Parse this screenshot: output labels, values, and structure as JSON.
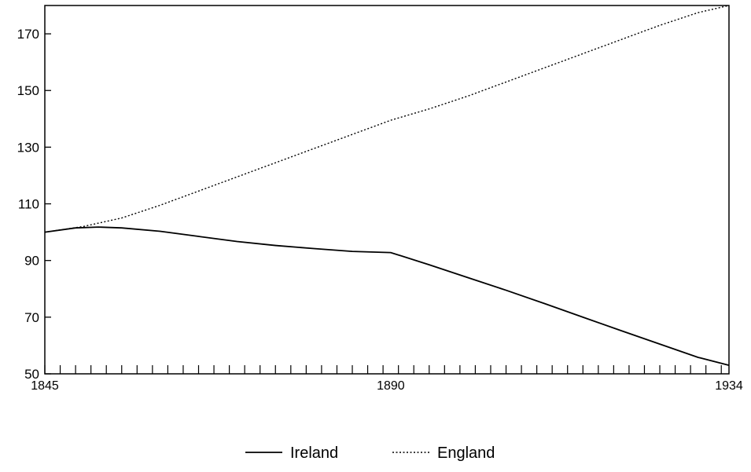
{
  "chart_data": {
    "type": "line",
    "title": "",
    "xlabel": "",
    "ylabel": "",
    "x_tick_labels": [
      "1845",
      "1890",
      "1934"
    ],
    "x_ticks": [
      1845,
      1890,
      1934
    ],
    "y_tick_labels": [
      "50",
      "70",
      "90",
      "110",
      "130",
      "150",
      "170"
    ],
    "y_ticks": [
      50,
      70,
      90,
      110,
      130,
      150,
      170
    ],
    "xlim": [
      1845,
      1934
    ],
    "ylim": [
      50,
      180
    ],
    "grid": false,
    "legend_position": "bottom-center",
    "series": [
      {
        "name": "Ireland",
        "style": "solid",
        "color": "#000000",
        "x": [
          1845,
          1849,
          1852,
          1855,
          1860,
          1865,
          1870,
          1875,
          1880,
          1885,
          1890,
          1895,
          1900,
          1905,
          1910,
          1915,
          1920,
          1925,
          1930,
          1934
        ],
        "y": [
          100,
          101.5,
          101.8,
          101.5,
          100.3,
          98.5,
          96.7,
          95.3,
          94.2,
          93.2,
          92.8,
          88.5,
          84,
          79.5,
          74.8,
          70,
          65.2,
          60.5,
          55.8,
          53
        ]
      },
      {
        "name": "England",
        "style": "dotted",
        "color": "#000000",
        "x": [
          1845,
          1850,
          1855,
          1860,
          1865,
          1870,
          1875,
          1880,
          1885,
          1890,
          1895,
          1900,
          1905,
          1910,
          1915,
          1920,
          1925,
          1930,
          1934
        ],
        "y": [
          100,
          102,
          105,
          109.5,
          114.5,
          119.5,
          124.5,
          129.5,
          134.5,
          139.5,
          143.5,
          148,
          153,
          158,
          163,
          168,
          173,
          177.5,
          180
        ]
      }
    ]
  }
}
